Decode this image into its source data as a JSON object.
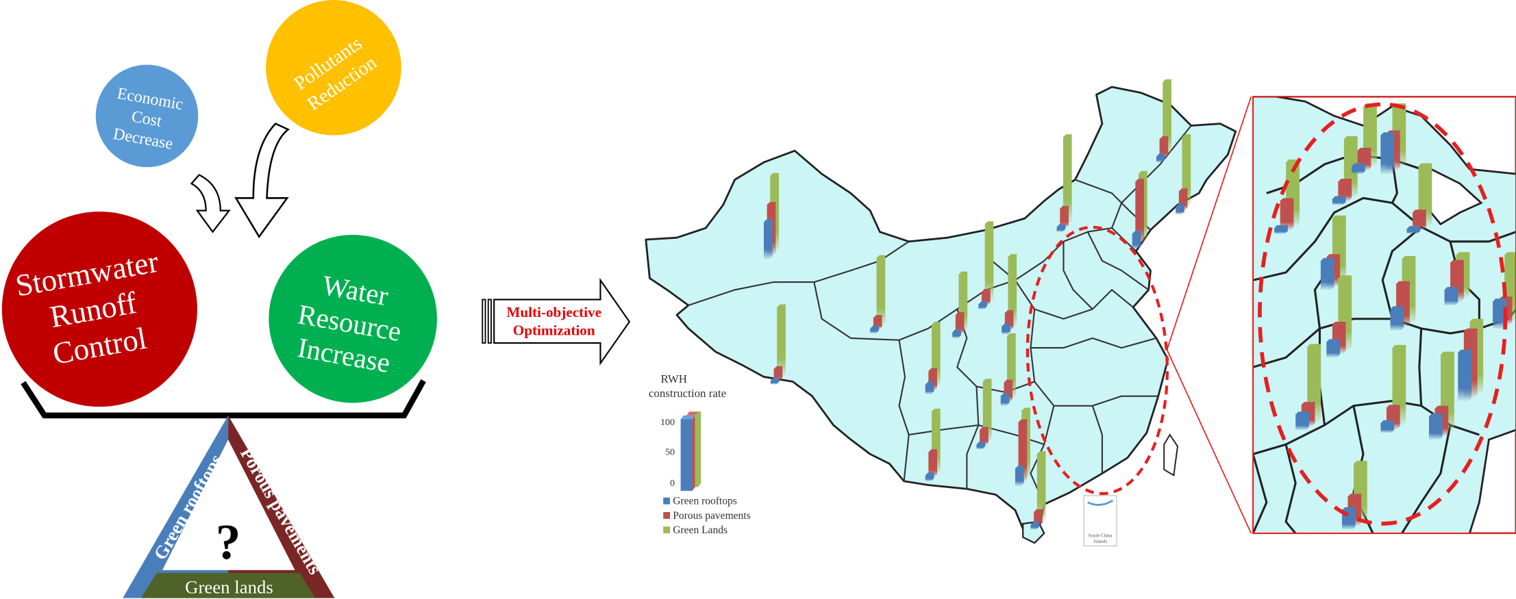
{
  "objectives": {
    "economic": "Economic Cost Decrease",
    "pollutants": "Pollutants Reduction",
    "stormwater": "Stormwater Runoff Control",
    "water": "Water Resource Increase"
  },
  "triangle": {
    "left": "Green rooftops",
    "right": "Porous pavements",
    "bottom": "Green lands",
    "question": "?"
  },
  "arrow": {
    "line1": "Multi-objective",
    "line2": "Optimization"
  },
  "legend": {
    "title1": "RWH",
    "title2": "construction rate",
    "ticks": [
      "100",
      "50",
      "0"
    ],
    "items": [
      {
        "label": "Green rooftops",
        "color": "#4a7ebb"
      },
      {
        "label": "Porous pavements",
        "color": "#c0504d"
      },
      {
        "label": "Green Lands",
        "color": "#9bbb59"
      }
    ]
  },
  "inset": {
    "line1": "South China",
    "line2": "Islands"
  },
  "colors": {
    "economic": "#5b9bd5",
    "pollutants": "#ffc000",
    "stormwater": "#c00000",
    "water": "#00b050",
    "map_fill": "#ccf5f5",
    "triangle_left": "#4a7ebb",
    "triangle_right": "#7b2626",
    "triangle_bottom": "#4f6228",
    "highlight": "#e62020"
  }
}
